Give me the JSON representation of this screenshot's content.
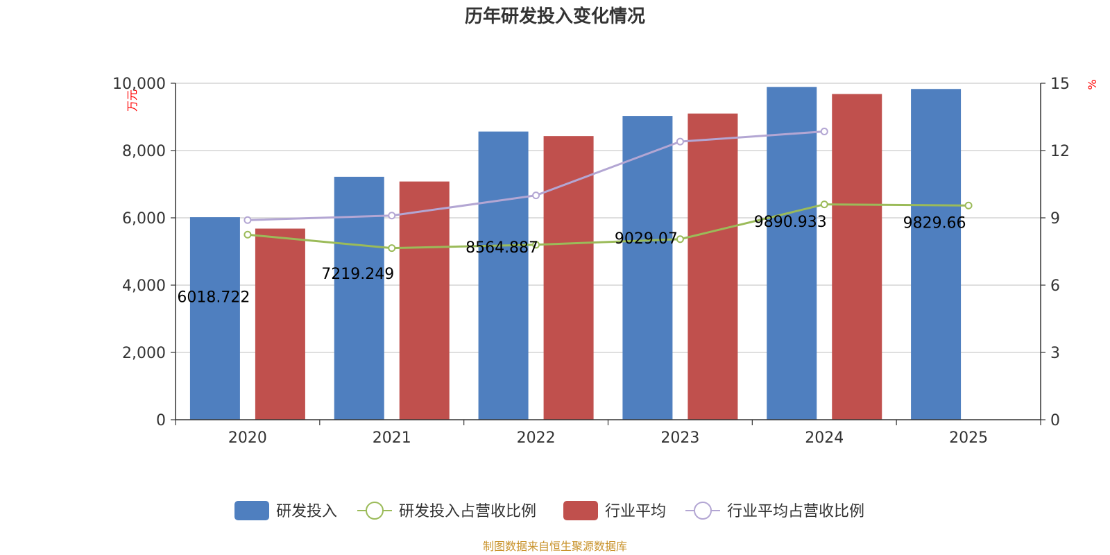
{
  "chart_data": {
    "type": "bar",
    "title": "历年研发投入变化情况",
    "categories": [
      "2020",
      "2021",
      "2022",
      "2023",
      "2024",
      "2025"
    ],
    "y_left": {
      "unit": "万元",
      "ylim": [
        0,
        10000
      ],
      "ticks": [
        "0",
        "2,000",
        "4,000",
        "6,000",
        "8,000",
        "10,000"
      ]
    },
    "y_right": {
      "unit": "%",
      "ylim": [
        0,
        15
      ],
      "ticks": [
        "0",
        "3",
        "6",
        "9",
        "12",
        "15"
      ]
    },
    "grid": true,
    "legend_position": "bottom",
    "series": [
      {
        "name": "研发投入",
        "kind": "bar",
        "axis": "left",
        "color": "#4f7fbf",
        "values": [
          6018.722,
          7219.249,
          8564.887,
          9029.07,
          9890.933,
          9829.66
        ],
        "labels": [
          "6018.722",
          "7219.249",
          "8564.887",
          "9029.07",
          "9890.933",
          "9829.66"
        ]
      },
      {
        "name": "研发投入占营收比例",
        "kind": "line",
        "axis": "right",
        "color": "#9bbb59",
        "values": [
          8.25,
          7.65,
          7.8,
          8.05,
          9.6,
          9.55
        ]
      },
      {
        "name": "行业平均",
        "kind": "bar",
        "axis": "left",
        "color": "#c0504d",
        "values": [
          5680,
          7080,
          8430,
          9100,
          9680,
          null
        ]
      },
      {
        "name": "行业平均占营收比例",
        "kind": "line",
        "axis": "right",
        "color": "#b3a6d3",
        "values": [
          8.9,
          9.1,
          10.0,
          12.4,
          12.85,
          null
        ]
      }
    ]
  },
  "footer": {
    "source": "制图数据来自恒生聚源数据库"
  }
}
